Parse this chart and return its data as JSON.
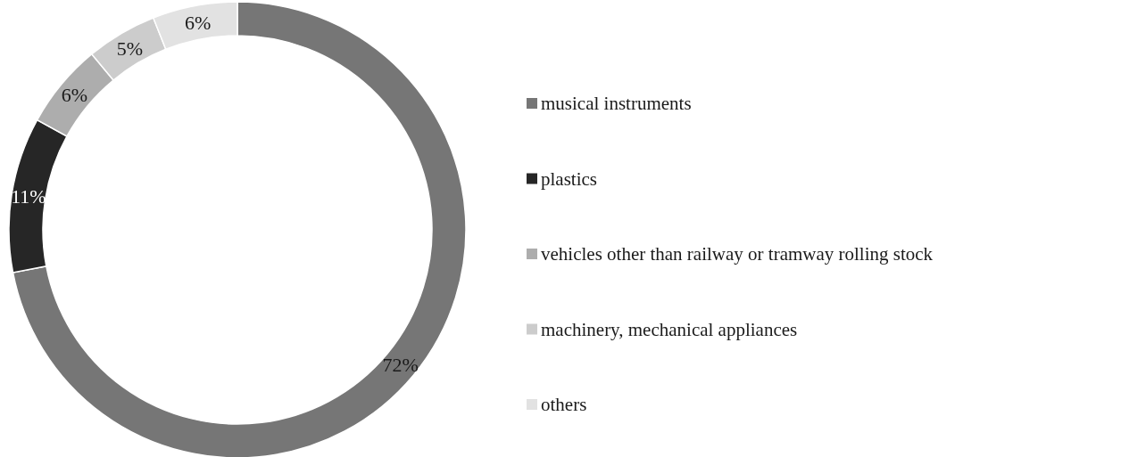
{
  "chart_data": {
    "type": "donut",
    "categories": [
      "musical instruments",
      "plastics",
      "vehicles other than railway or tramway rolling stock",
      "machinery, mechanical appliances",
      "others"
    ],
    "values": [
      72,
      11,
      6,
      5,
      6
    ],
    "colors": [
      "#767676",
      "#262626",
      "#adadad",
      "#cccccc",
      "#e2e2e2"
    ],
    "value_labels": [
      "72%",
      "11%",
      "6%",
      "5%",
      "6%"
    ],
    "legend": "right"
  }
}
